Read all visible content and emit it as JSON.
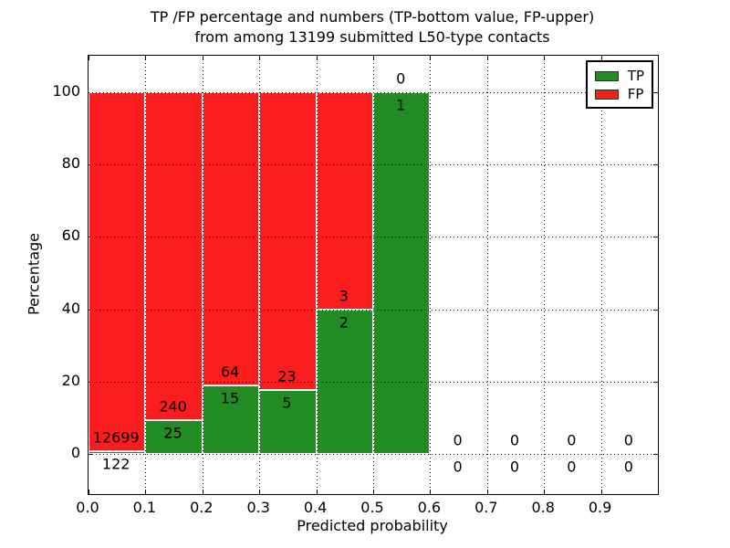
{
  "title": {
    "line1": "TP /FP percentage and numbers (TP-bottom value, FP-upper)",
    "line2": "from among 13199 submitted L50-type contacts"
  },
  "axes": {
    "ylabel": "Percentage",
    "xlabel": "Predicted probability"
  },
  "legend": {
    "entries": [
      {
        "label": "TP",
        "color": "#228b22"
      },
      {
        "label": "FP",
        "color": "#fb1d1d"
      }
    ]
  },
  "colors": {
    "tp_green": "#228b22",
    "fp_red": "#fb1d1d",
    "bar_edge": "#ffffff",
    "grid": "#000000"
  },
  "chart_data": {
    "type": "bar",
    "stacked": true,
    "title": "TP /FP percentage and numbers (TP-bottom value, FP-upper) from among 13199 submitted L50-type contacts",
    "xlabel": "Predicted probability",
    "ylabel": "Percentage",
    "total_contacts": 13199,
    "xlim": [
      0.0,
      1.0
    ],
    "ylim": [
      -11,
      110
    ],
    "xticks": [
      "0.0",
      "0.1",
      "0.2",
      "0.3",
      "0.4",
      "0.5",
      "0.6",
      "0.7",
      "0.8",
      "0.9"
    ],
    "yticks": [
      0,
      20,
      40,
      60,
      80,
      100
    ],
    "grid": "dotted",
    "legend_position": "upper right",
    "series": [
      {
        "name": "TP",
        "color": "#228b22",
        "values": [
          122,
          25,
          15,
          5,
          2,
          1,
          0,
          0,
          0,
          0
        ]
      },
      {
        "name": "FP",
        "color": "#fb1d1d",
        "values": [
          12699,
          240,
          64,
          23,
          3,
          0,
          0,
          0,
          0,
          0
        ]
      }
    ],
    "bins": [
      {
        "x0": 0.0,
        "x1": 0.1,
        "tp": 122,
        "fp": 12699,
        "tp_pct": 0.95,
        "fp_pct": 99.05
      },
      {
        "x0": 0.1,
        "x1": 0.2,
        "tp": 25,
        "fp": 240,
        "tp_pct": 9.43,
        "fp_pct": 90.57
      },
      {
        "x0": 0.2,
        "x1": 0.3,
        "tp": 15,
        "fp": 64,
        "tp_pct": 18.99,
        "fp_pct": 81.01
      },
      {
        "x0": 0.3,
        "x1": 0.4,
        "tp": 5,
        "fp": 23,
        "tp_pct": 17.86,
        "fp_pct": 82.14
      },
      {
        "x0": 0.4,
        "x1": 0.5,
        "tp": 2,
        "fp": 3,
        "tp_pct": 40.0,
        "fp_pct": 60.0
      },
      {
        "x0": 0.5,
        "x1": 0.6,
        "tp": 1,
        "fp": 0,
        "tp_pct": 100.0,
        "fp_pct": 0.0
      },
      {
        "x0": 0.6,
        "x1": 0.7,
        "tp": 0,
        "fp": 0,
        "tp_pct": 0.0,
        "fp_pct": 0.0
      },
      {
        "x0": 0.7,
        "x1": 0.8,
        "tp": 0,
        "fp": 0,
        "tp_pct": 0.0,
        "fp_pct": 0.0
      },
      {
        "x0": 0.8,
        "x1": 0.9,
        "tp": 0,
        "fp": 0,
        "tp_pct": 0.0,
        "fp_pct": 0.0
      },
      {
        "x0": 0.9,
        "x1": 1.0,
        "tp": 0,
        "fp": 0,
        "tp_pct": 0.0,
        "fp_pct": 0.0
      }
    ]
  }
}
